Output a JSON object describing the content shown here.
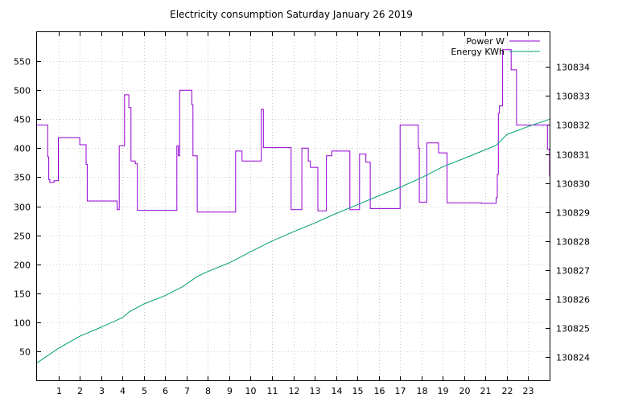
{
  "chart_data": {
    "type": "line",
    "title": "Electricity consumption Saturday January 26 2019",
    "xlabel": "",
    "ylabel": "",
    "xlim": [
      0,
      24
    ],
    "ylim": [
      0,
      600
    ],
    "y2lim": [
      130823.2,
      130835.2
    ],
    "x_ticks": [
      1,
      2,
      3,
      4,
      5,
      6,
      7,
      8,
      9,
      10,
      11,
      12,
      13,
      14,
      15,
      16,
      17,
      18,
      19,
      20,
      21,
      22,
      23
    ],
    "y_ticks": [
      50,
      100,
      150,
      200,
      250,
      300,
      350,
      400,
      450,
      500,
      550
    ],
    "y2_ticks": [
      130824,
      130825,
      130826,
      130827,
      130828,
      130829,
      130830,
      130831,
      130832,
      130833,
      130834
    ],
    "grid": true,
    "legend_position": "top-right",
    "series": [
      {
        "name": "Power W",
        "axis": "left",
        "color": "#9400d3",
        "step": true,
        "x": [
          0,
          0.5,
          0.55,
          0.6,
          0.8,
          0.95,
          1.0,
          2.0,
          2.3,
          2.35,
          3.6,
          3.75,
          3.85,
          4.1,
          4.3,
          4.4,
          4.45,
          4.6,
          4.7,
          4.8,
          6.5,
          6.55,
          6.62,
          6.68,
          7.2,
          7.25,
          7.3,
          7.5,
          9.25,
          9.3,
          9.6,
          9.9,
          10.5,
          10.6,
          11.9,
          12.05,
          12.4,
          12.7,
          12.8,
          13.15,
          13.25,
          13.55,
          13.65,
          13.8,
          14.65,
          14.8,
          15.1,
          15.4,
          15.6,
          16.6,
          16.9,
          17.0,
          17.6,
          17.85,
          17.9,
          18.0,
          18.25,
          18.8,
          19.2,
          19.7,
          20.8,
          21.4,
          21.5,
          21.55,
          21.6,
          21.65,
          21.8,
          22.15,
          22.2,
          22.45,
          23.9,
          24.0
        ],
        "values": [
          440,
          385,
          346,
          341,
          344,
          344,
          418,
          406,
          372,
          309,
          309,
          294,
          404,
          492,
          470,
          378,
          378,
          373,
          293,
          293,
          293,
          404,
          387,
          500,
          500,
          475,
          387,
          290,
          290,
          395,
          378,
          378,
          467,
          401,
          294,
          294,
          400,
          378,
          367,
          292,
          292,
          387,
          387,
          395,
          294,
          294,
          390,
          376,
          296,
          296,
          296,
          440,
          440,
          400,
          307,
          307,
          409,
          392,
          306,
          306,
          305,
          305,
          315,
          355,
          460,
          473,
          570,
          570,
          535,
          440,
          398,
          352
        ]
      },
      {
        "name": "Energy KWh",
        "axis": "right",
        "color": "#009e73",
        "step": false,
        "x": [
          0,
          1,
          2,
          3,
          4,
          4.3,
          5,
          6,
          6.8,
          7.5,
          8,
          9,
          10,
          11,
          12,
          13,
          14,
          15,
          16,
          17,
          18,
          19,
          20,
          21,
          21.5,
          22,
          23,
          24
        ],
        "values": [
          130823.8,
          130824.3,
          130824.72,
          130825.03,
          130825.36,
          130825.55,
          130825.83,
          130826.12,
          130826.42,
          130826.78,
          130826.95,
          130827.25,
          130827.63,
          130828.0,
          130828.32,
          130828.62,
          130828.95,
          130829.25,
          130829.56,
          130829.85,
          130830.18,
          130830.56,
          130830.85,
          130831.15,
          130831.3,
          130831.67,
          130831.95,
          130832.2
        ]
      }
    ]
  }
}
